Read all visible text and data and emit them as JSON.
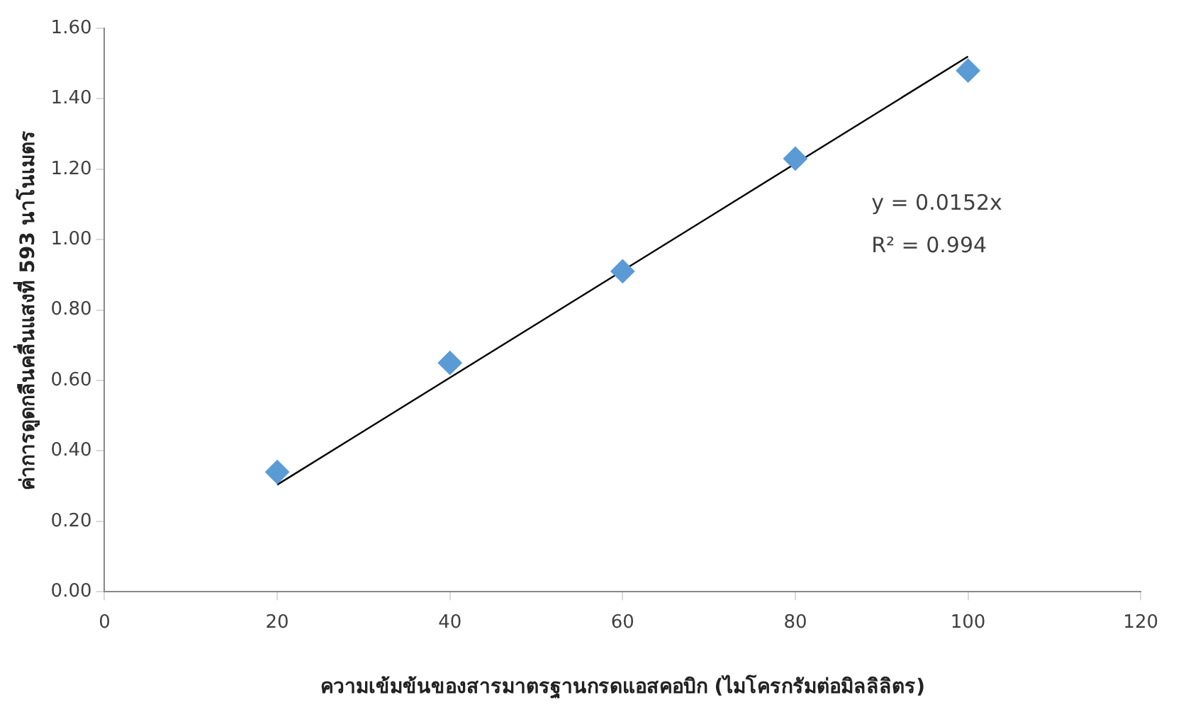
{
  "chart_data": {
    "type": "scatter",
    "xlabel": "ความเข้มข้นของสารมาตรฐานกรดแอสคอบิก (ไมโครกรัมต่อมิลลิลิตร)",
    "ylabel": "ค่าการดูดกลืนคลื่นแสงที่ 593 นาโนเมตร",
    "annotations": [
      "y = 0.0152x",
      "R² = 0.994"
    ],
    "x": [
      20,
      40,
      60,
      80,
      100
    ],
    "series": [
      {
        "type": "scatter",
        "color": "#5b9bd5",
        "values": [
          0.34,
          0.65,
          0.91,
          1.23,
          1.48
        ],
        "marker": "diamond"
      },
      {
        "type": "line",
        "color": "#000000",
        "x": [
          20,
          100
        ],
        "values": [
          0.304,
          1.52
        ],
        "marker": "none"
      }
    ],
    "xlim": [
      0,
      120
    ],
    "xticks": [
      0,
      20,
      40,
      60,
      80,
      100,
      120
    ],
    "ylim": [
      0,
      1.6
    ],
    "yticks": [
      {
        "value": 0,
        "label": "0.00"
      },
      {
        "value": 0.2,
        "label": "0.20"
      },
      {
        "value": 0.4,
        "label": "0.40"
      },
      {
        "value": 0.6,
        "label": "0.60"
      },
      {
        "value": 0.8,
        "label": "0.80"
      },
      {
        "value": 1,
        "label": "1.00"
      },
      {
        "value": 1.2,
        "label": "1.20"
      },
      {
        "value": 1.4,
        "label": "1.40"
      },
      {
        "value": 1.6,
        "label": "1.60"
      }
    ],
    "grid": false,
    "legend": false
  }
}
